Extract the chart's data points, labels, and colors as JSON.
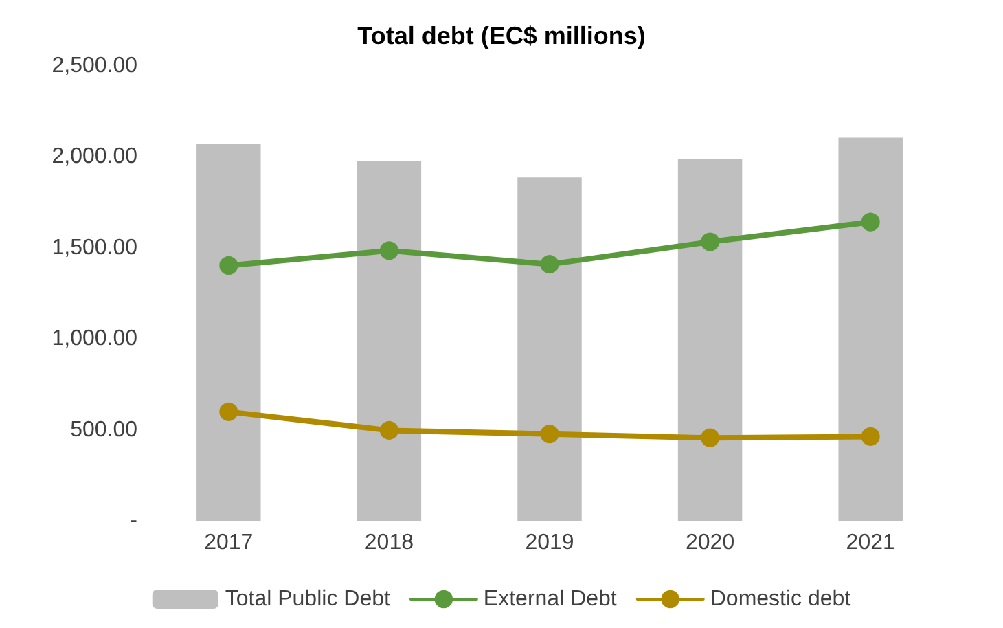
{
  "chart_data": {
    "type": "bar",
    "title": "Total debt (EC$ millions)",
    "categories": [
      "2017",
      "2018",
      "2019",
      "2020",
      "2021"
    ],
    "series": [
      {
        "name": "Total Public Debt",
        "color": "#bfbfbf",
        "values": [
          2071,
          1975,
          1887,
          1989,
          2105
        ]
      },
      {
        "name": "External Debt",
        "type": "line",
        "color": "#5b9a3c",
        "values": [
          1403,
          1485,
          1410,
          1533,
          1642
        ]
      },
      {
        "name": "Domestic debt",
        "type": "line",
        "color": "#b08a00",
        "values": [
          599,
          497,
          477,
          456,
          463
        ]
      }
    ],
    "ylim": [
      0,
      2500
    ],
    "yticks": [
      {
        "value": 0,
        "label": "-"
      },
      {
        "value": 500,
        "label": "500.00"
      },
      {
        "value": 1000,
        "label": "1,000.00"
      },
      {
        "value": 1500,
        "label": "1,500.00"
      },
      {
        "value": 2000,
        "label": "2,000.00"
      },
      {
        "value": 2500,
        "label": "2,500.00"
      }
    ],
    "grid": false,
    "legend": "bottom",
    "marker": "circle"
  }
}
